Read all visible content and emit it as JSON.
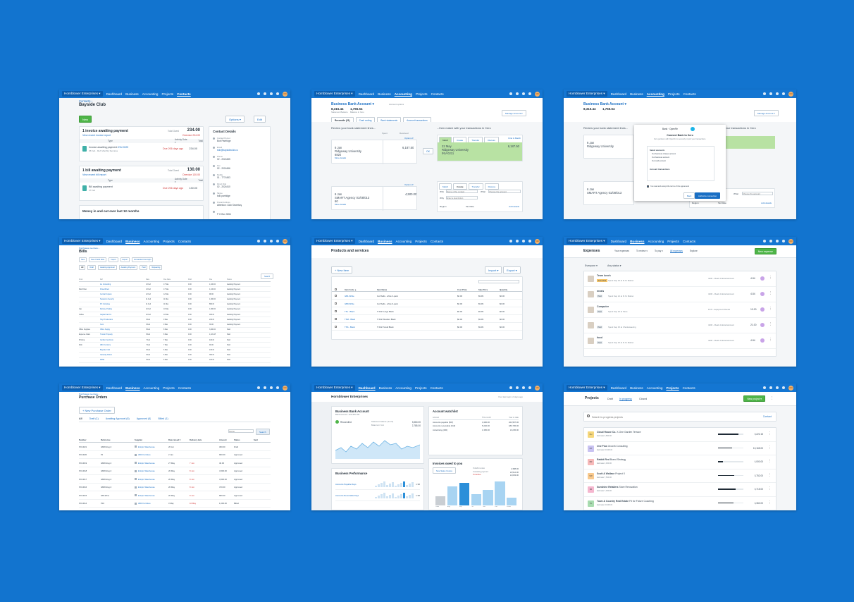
{
  "topbar": {
    "org": "Hornblower Enterprises ▾",
    "nav": [
      "Dashboard",
      "Business",
      "Accounting",
      "Projects",
      "Contacts"
    ],
    "avatar": "CD"
  },
  "contact": {
    "breadcrumb": "Contacts ›",
    "title": "Bayside Club",
    "new_btn": "New",
    "options_btn": "Options ▾",
    "edit_btn": "Edit",
    "inv_heading": "1 invoice awaiting payment",
    "inv_link": "View recent invoice report",
    "inv_total_label": "Total Owed",
    "inv_total": "234.00",
    "inv_overdue": "Overdue 234.00",
    "cols": [
      "Type",
      "Activity Date ▾",
      "Total"
    ],
    "inv_row": {
      "name": "Invoice awaiting payment",
      "ref": "INV-0025",
      "sub": "25 Feb · Ref: Monthly Services",
      "due": "Due 206 days ago",
      "total": "234.00"
    },
    "bill_heading": "1 bill awaiting payment",
    "bill_link": "View recent bill report",
    "bill_total_label": "Total Owed",
    "bill_total": "130.00",
    "bill_overdue": "Overdue 130.00",
    "bill_row": {
      "name": "Bill awaiting payment",
      "sub": "27 Feb",
      "due": "Due 206 days ago",
      "total": "130.00"
    },
    "money_heading": "Money in and out over last 12 months",
    "details_title": "Contact Details",
    "details": [
      {
        "label": "Contact Person",
        "value": "Bob Partridge"
      },
      {
        "label": "Email",
        "value": "bob@baysideclub.co"
      },
      {
        "label": "Phone",
        "value": "02 - 2024455"
      },
      {
        "label": "Fax",
        "value": "02 - 2024456"
      },
      {
        "label": "Mobile",
        "value": "01 - 7774453"
      },
      {
        "label": "Direct Dial",
        "value": "02 - 2024410"
      },
      {
        "label": "Skype",
        "value": "bob.partridge"
      },
      {
        "label": "Postal Address",
        "value": "Attention: Club Secretary"
      },
      {
        "label": "",
        "value": "P O Box 3354"
      }
    ]
  },
  "reconcile": {
    "title": "Business Bank Account ▾",
    "sub": "Account options",
    "stmt_bal": "8,315.44",
    "stmt_label": "Statement Balance",
    "xero_bal": "1,765.54",
    "xero_label": "Balance in Xero",
    "import_btn": "Manage Account ▾",
    "tabs": [
      "Reconcile (21)",
      "Cash coding",
      "Bank statements",
      "Account transactions"
    ],
    "intro_left": "Review your bank statement lines...",
    "intro_right": "...then match with your transactions in Xero",
    "spent": "Spent",
    "received": "Received",
    "options": "Options ▾",
    "line1": {
      "date": "6 Jan",
      "payee": "Ridgeway University",
      "ref": "6820",
      "more": "More details",
      "amount": "6,187.50"
    },
    "ok_btn": "OK",
    "match_tabs": [
      "Match",
      "Create",
      "Transfer",
      "Discuss"
    ],
    "find": "Find & Match",
    "match1": {
      "date": "22 May",
      "name": "Ridgeway University",
      "ref": "INV-0211",
      "amount": "6,187.50"
    },
    "line2": {
      "date": "6 Jan",
      "payee": "SMART Agency 01/08/013",
      "ref": "60",
      "more": "More details",
      "amount": "4,500.00"
    },
    "create_who": "Who",
    "create_who_ph": "Name of the contact",
    "create_what": "What",
    "create_what_ph": "Choose the account",
    "create_why": "Why",
    "create_why_ph": "Enter a description",
    "region": "Region",
    "tax": "Tax Rate",
    "add_details": "Add details"
  },
  "modal": {
    "brand": "Bank · OpenFin",
    "title": "Connect Bank to Xero",
    "desc": "Xero partners with OpenFin to securely import your transactions.",
    "section1": "Select accounts",
    "opts": [
      "Our business cheque account",
      "Our business account",
      "Our card account"
    ],
    "section2": "Account transactions",
    "checkbox": "I've read and accept the terms of the agreement",
    "back": "Back",
    "continue": "Authorize connection"
  },
  "bills": {
    "breadcrumb": "Purchases overview ›",
    "title": "Bills",
    "actions": [
      "New",
      "New Credit Note",
      "Import",
      "Export",
      "Forwarded Overnight"
    ],
    "tabs": [
      "All",
      "Draft",
      "Awaiting Approval",
      "Awaiting Payment",
      "Paid",
      "Repeating"
    ],
    "search_btn": "Search",
    "cols": [
      "From",
      "Ref",
      "Date",
      "Due Date",
      "Paid",
      "Due",
      "Status"
    ],
    "rows": [
      [
        "",
        "Ice Consulting",
        "13 Feb",
        "17 Mar",
        "0.00",
        "1,400.00",
        "Awaiting Payment"
      ],
      [
        "Mail Order",
        "PowerDirect",
        "13 Feb",
        "17 Mar",
        "0.00",
        "1,100.00",
        "Awaiting Payment"
      ],
      [
        "",
        "Central Copiers",
        "12 Feb",
        "12 Mar",
        "0.00",
        "98.00",
        "Awaiting Payment"
      ],
      [
        "",
        "Swanston Security",
        "11 Feb",
        "11 Mar",
        "0.00",
        "1,000.00",
        "Awaiting Payment"
      ],
      [
        "",
        "PC Complete",
        "11 Feb",
        "11 Mar",
        "0.00",
        "890.00",
        "Awaiting Payment"
      ],
      [
        "Gas",
        "Melrose Parking",
        "10 Feb",
        "10 Mar",
        "0.00",
        "1,900.00",
        "Awaiting Payment"
      ],
      [
        "Coffee",
        "Capital Cab Co",
        "10 Feb",
        "10 Mar",
        "0.00",
        "180.00",
        "Awaiting Payment"
      ],
      [
        "",
        "Hoyt Productions",
        "9 Feb",
        "9 Mar",
        "0.00",
        "240.00",
        "Awaiting Payment"
      ],
      [
        "",
        "Xero",
        "9 Feb",
        "9 Mar",
        "0.00",
        "39.00",
        "Awaiting Payment"
      ],
      [
        "Office Supplies",
        "Office Supply",
        "8 Feb",
        "8 Mar",
        "0.00",
        "3,900.00",
        "Paid"
      ],
      [
        "Expense Claim",
        "Truxton Property",
        "8 Feb",
        "8 Mar",
        "0.00",
        "1,181.25",
        "Paid"
      ],
      [
        "Printing",
        "Carlton Functions",
        "7 Feb",
        "7 Mar",
        "0.00",
        "440.00",
        "Paid"
      ],
      [
        "Web",
        "ABC Furniture",
        "7 Feb",
        "7 Mar",
        "0.00",
        "90.00",
        "Paid"
      ],
      [
        "",
        "Bayside Club",
        "6 Feb",
        "6 Mar",
        "0.00",
        "130.00",
        "Paid"
      ],
      [
        "",
        "Gateway Motors",
        "6 Feb",
        "6 Mar",
        "0.00",
        "360.00",
        "Paid"
      ],
      [
        "",
        "DIISR",
        "5 Feb",
        "5 Mar",
        "0.00",
        "120.00",
        "Paid"
      ]
    ]
  },
  "products": {
    "title": "Products and services",
    "new_btn": "+ New Item",
    "import_btn": "Import ▾",
    "export_btn": "Export ▾",
    "cols": [
      "Item Code ▲",
      "Item Name",
      "Cost Price",
      "Sale Price",
      "Quantity"
    ],
    "rows": [
      [
        "GB1-White",
        "Golf balls - white 3-pack",
        "$0.00",
        "$9.99",
        "$0.00"
      ],
      [
        "GB9-White",
        "Golf balls - white 9-pack",
        "$0.00",
        "$9.99",
        "$0.00"
      ],
      [
        "TSL - Black",
        "T-Shirt Large Black",
        "$0.00",
        "$9.99",
        "$0.00"
      ],
      [
        "TSM - Black",
        "T-Shirt Medium Black",
        "$0.00",
        "$9.99",
        "$0.00"
      ],
      [
        "TSS - Black",
        "T-Shirt Small Black",
        "$0.00",
        "$9.99",
        "$0.00"
      ]
    ]
  },
  "expenses": {
    "title": "Expenses",
    "tabs": [
      "Your expenses",
      "To review ▾",
      "To pay ▾",
      "All expenses",
      "Explore"
    ],
    "new_btn": "New expense",
    "filters": [
      "Everyone ▾",
      "Any status ▾"
    ],
    "rows": [
      {
        "name": "Team lunch",
        "badge": "Submitted",
        "sub": "Spent Sep 15 at R J's Market",
        "cat": "4200 - Meals & Entertainment",
        "amt": "4.84"
      },
      {
        "name": "meals",
        "badge": "Paid",
        "sub": "Spent Sep 21 at R J's Market",
        "cat": "4200 - Meals & Entertainment",
        "amt": "4.84"
      },
      {
        "name": "Computer",
        "badge": "Paid",
        "sub": "Spent Sep 15 at Store",
        "cat": "6770 - Equipment Rental",
        "amt": "10.00"
      },
      {
        "name": "",
        "badge": "Paid",
        "sub": "Spent Sep 15 at Chantawaering",
        "cat": "4200 - Meals & Entertainment",
        "amt": "21.00"
      },
      {
        "name": "food",
        "badge": "Paid",
        "sub": "Spent Sep 15 at R J's Market",
        "cat": "4200 - Meals & Entertainment",
        "amt": "4.84"
      }
    ]
  },
  "po": {
    "breadcrumb": "Purchases overview ›",
    "title": "Purchase Orders",
    "new_btn": "+ New Purchase Order",
    "tabs": [
      "All",
      "Draft (1)",
      "Awaiting Approval (6)",
      "Approved (6)",
      "Billed (1)"
    ],
    "search_ph": "Name",
    "search_btn": "Search",
    "cols": [
      "Number",
      "Reference",
      "Supplier",
      "Date raised ▾",
      "Delivery date",
      "Amount",
      "Status",
      "Sent"
    ],
    "rows": [
      [
        "PO-0021",
        "GBW-Reg-3",
        "Ertnpix Warehouse",
        "26 Jan",
        "",
        "360.00",
        "Draft"
      ],
      [
        "PO-0020",
        "P4",
        "ABC Furniture",
        "2 Jan",
        "",
        "900.00",
        "Approved"
      ],
      [
        "PO-0019",
        "GBW-Reg-3",
        "Ertnpix Warehouse",
        "27 May",
        "7 Jun",
        "40.00",
        "Approved"
      ],
      [
        "PO-0018",
        "GBW-Reg-3",
        "Ertnpix Warehouse",
        "20 May",
        "8 Jun",
        "4,500.00",
        "Approved"
      ],
      [
        "PO-0017",
        "GBW-Reg-3",
        "Ertnpix Warehouse",
        "20 May",
        "8 Jun",
        "4,500.00",
        "Approved"
      ],
      [
        "PO-0016",
        "GBW-Reg-3",
        "Ertnpix Warehouse",
        "20 May",
        "8 Jun",
        "470.00",
        "Approved"
      ],
      [
        "PO-0015",
        "GBI-Wine",
        "Ertnpix Warehouse",
        "20 May",
        "8 Jun",
        "680.00",
        "Approved"
      ],
      [
        "PO-0014",
        "P16",
        "ABC Furniture",
        "3 May",
        "10 May",
        "1,000.00",
        "Billed"
      ]
    ]
  },
  "dashboard": {
    "org": "Hornblower Enterprises",
    "last_login": "Your last login: 2 days ago",
    "bank_title": "Business Bank Account",
    "bank_sub": "Bank account: 123-456-789",
    "reconciled": "Reconciled",
    "stmt_label": "Statement balance (Jul 23)",
    "stmt_val": "3,560.00",
    "xero_label": "Balance in Xero",
    "xero_val": "2,785.00",
    "watch_title": "Account watchlist",
    "watch_cols": [
      "Account",
      "This month",
      "Year to date"
    ],
    "watch_rows": [
      [
        "Accounts payable (800)",
        "3,400.00",
        "224,567.00"
      ],
      [
        "Accounts receivable (610)",
        "5,240.00",
        "180,745.00"
      ],
      [
        "Advertising (400)",
        "1,350.00",
        "13,245.00"
      ]
    ],
    "perf_title": "Business Performance",
    "perf_rows": [
      [
        "Accounts Payable Days",
        "1.96"
      ],
      [
        "Accounts Receivable Days",
        "1.96"
      ]
    ],
    "owed_title": "Invoices owed to you",
    "owed_btn": "New Sales Invoice",
    "owed_rows": [
      [
        "8 draft invoices",
        "2,358.00"
      ],
      [
        "9 awaiting payment",
        "10,512.00"
      ],
      [
        "8 overdue",
        "14,603.00"
      ]
    ],
    "owed_bars": [
      0.35,
      0.75,
      0.9,
      0.45,
      0.6,
      0.95,
      0.3
    ],
    "chart_x": [
      "Older",
      "Aug",
      "Sep",
      "Oct",
      "Nov",
      "Dec",
      "Future"
    ]
  },
  "projects": {
    "title": "Projects",
    "tabs": [
      "Draft",
      "In progress",
      "Closed"
    ],
    "new_btn": "New project ▾",
    "search_ph": "Search in-progress projects",
    "contact": "Contact",
    "rows": [
      {
        "initials": "CH",
        "color": "#f6d77b",
        "name": "Cloud House Co.",
        "desc": "X-One Garden Terrace",
        "est": "Estimate 3,890.00",
        "val": "5,222.15",
        "prog": 0.8
      },
      {
        "initials": "OP",
        "color": "#c9c3f2",
        "name": "One Plus",
        "desc": "Growth Consulting",
        "est": "Estimate 20,000.00",
        "val": "13,165.00",
        "prog": 0.55
      },
      {
        "initials": "RR",
        "color": "#f7b9b9",
        "name": "Rabbit Red",
        "desc": "Brand Strategy",
        "est": "Estimate 4,000.00",
        "val": "4,000.00",
        "prog": 0.2
      },
      {
        "initials": "SW",
        "color": "#f9c98d",
        "name": "Scott & Wallace",
        "desc": "Project X",
        "est": "Estimate 7,500.00",
        "val": "5,752.00",
        "prog": 0.65
      },
      {
        "initials": "SR",
        "color": "#f5b7cf",
        "name": "Sunshine Retailers",
        "desc": "Store Renovation",
        "est": "Estimate 7,000.00",
        "val": "5,715.00",
        "prog": 0.7
      },
      {
        "initials": "TC",
        "color": "#a8dcb0",
        "name": "Town & Country Real Estate",
        "desc": "Fit for Future Coaching",
        "est": "Estimate 10,000.00",
        "val": "6,360.00",
        "prog": 0.6
      }
    ]
  },
  "colors": {
    "bg": "#1274cf",
    "topbar": "#1476d2",
    "green": "#4eb548",
    "link": "#1a6fc4"
  }
}
